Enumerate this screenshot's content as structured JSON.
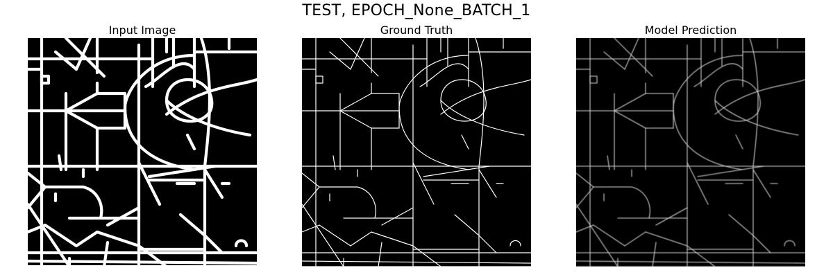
{
  "figure": {
    "suptitle": "TEST, EPOCH_None_BATCH_1",
    "panels": [
      {
        "title": "Input Image",
        "style": "thick",
        "color": "#ffffff"
      },
      {
        "title": "Ground Truth",
        "style": "thin",
        "color": "#ffffff"
      },
      {
        "title": "Model Prediction",
        "style": "soft",
        "color": "#d0d0d0"
      }
    ]
  }
}
